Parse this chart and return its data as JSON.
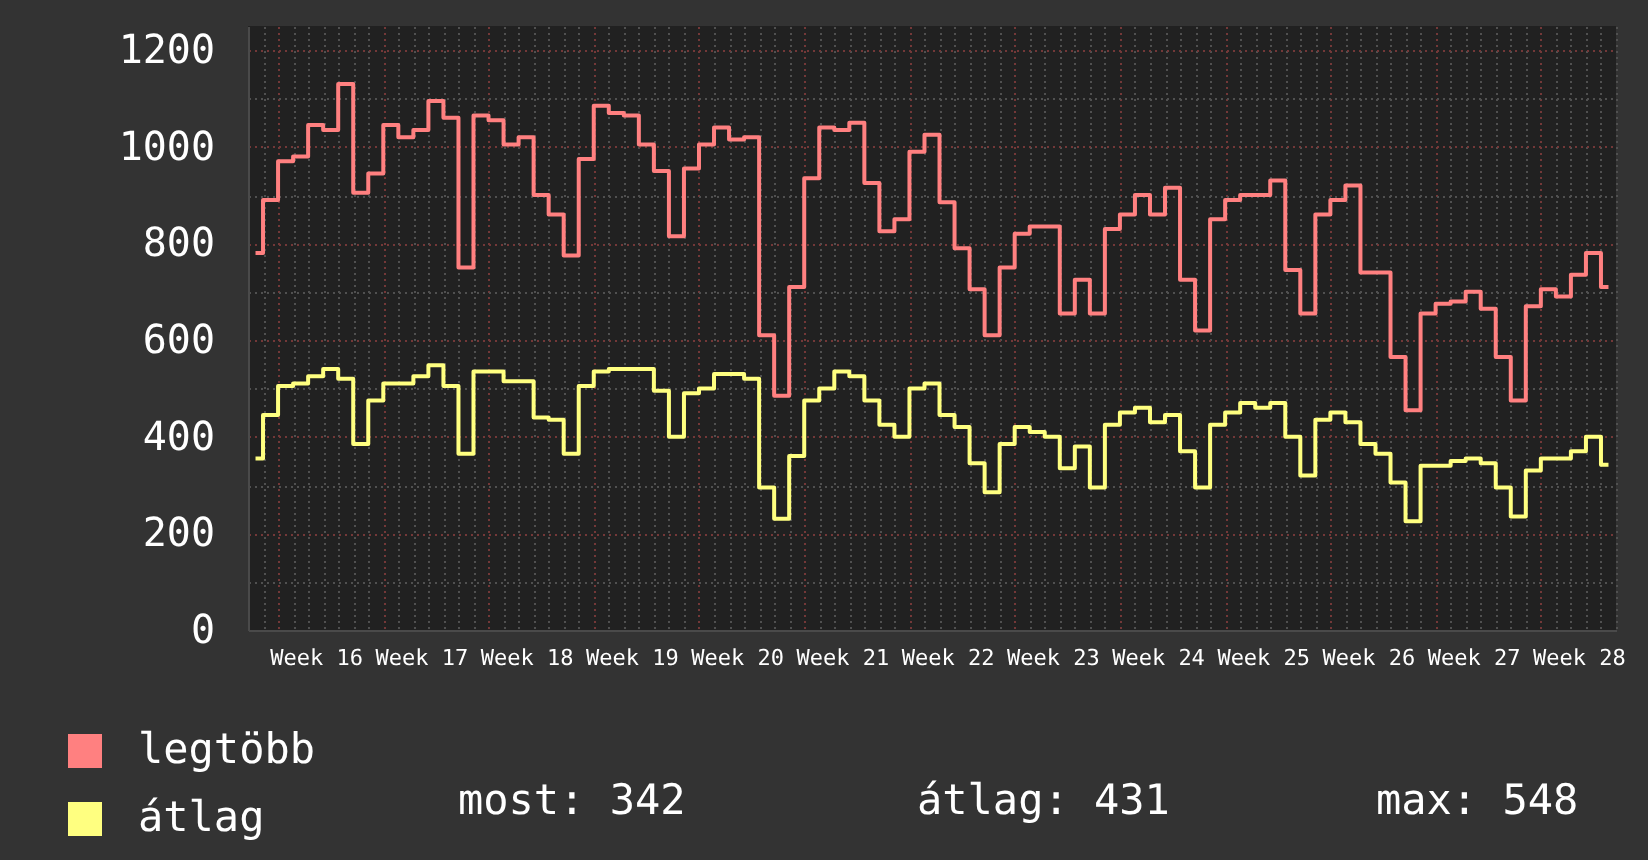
{
  "chart_data": {
    "type": "step",
    "categories": [
      null,
      null,
      null,
      null,
      "Week 16",
      null,
      null,
      null,
      null,
      null,
      null,
      "Week 17",
      null,
      null,
      null,
      null,
      null,
      null,
      "Week 18",
      null,
      null,
      null,
      null,
      null,
      null,
      "Week 19",
      null,
      null,
      null,
      null,
      null,
      null,
      "Week 20",
      null,
      null,
      null,
      null,
      null,
      null,
      "Week 21",
      null,
      null,
      null,
      null,
      null,
      null,
      "Week 22",
      null,
      null,
      null,
      null,
      null,
      null,
      "Week 23",
      null,
      null,
      null,
      null,
      null,
      null,
      "Week 24",
      null,
      null,
      null,
      null,
      null,
      null,
      "Week 25",
      null,
      null,
      null,
      null,
      null,
      null,
      "Week 26",
      null,
      null,
      null,
      null,
      null,
      null,
      "Week 27",
      null,
      null,
      null,
      null,
      null,
      null,
      "Week 28",
      null,
      null
    ],
    "series": [
      {
        "name": "legtöbb",
        "color": "#ff8080",
        "values": [
          780,
          890,
          970,
          980,
          1045,
          1035,
          1130,
          905,
          945,
          1045,
          1020,
          1035,
          1095,
          1060,
          750,
          1065,
          1055,
          1005,
          1020,
          900,
          860,
          775,
          975,
          1085,
          1070,
          1065,
          1005,
          950,
          815,
          955,
          1005,
          1040,
          1015,
          1020,
          610,
          485,
          710,
          935,
          1040,
          1035,
          1050,
          925,
          825,
          850,
          990,
          1025,
          885,
          790,
          705,
          610,
          750,
          820,
          835,
          835,
          655,
          725,
          655,
          830,
          860,
          900,
          860,
          915,
          725,
          620,
          850,
          890,
          900,
          900,
          930,
          745,
          655,
          860,
          890,
          920,
          740,
          740,
          565,
          455,
          655,
          675,
          680,
          700,
          665,
          565,
          475,
          670,
          705,
          690,
          735,
          780,
          710
        ]
      },
      {
        "name": "átlag",
        "color": "#ffff80",
        "values": [
          355,
          445,
          505,
          510,
          525,
          540,
          520,
          385,
          475,
          510,
          510,
          525,
          548,
          505,
          365,
          535,
          535,
          515,
          515,
          440,
          435,
          365,
          505,
          535,
          540,
          540,
          540,
          495,
          400,
          490,
          500,
          530,
          530,
          520,
          295,
          230,
          360,
          475,
          500,
          535,
          525,
          475,
          425,
          400,
          500,
          510,
          445,
          420,
          345,
          285,
          385,
          420,
          410,
          400,
          335,
          380,
          295,
          425,
          450,
          460,
          430,
          445,
          370,
          295,
          425,
          450,
          470,
          460,
          470,
          400,
          320,
          435,
          450,
          430,
          385,
          365,
          305,
          225,
          340,
          340,
          350,
          355,
          345,
          295,
          235,
          330,
          355,
          355,
          370,
          400,
          342
        ]
      }
    ],
    "ylim": [
      0,
      1250
    ],
    "yticks": [
      0,
      {
        "value": 100,
        "label": null
      },
      200,
      {
        "value": 300,
        "label": null
      },
      400,
      {
        "value": 500,
        "label": null
      },
      600,
      {
        "value": 700,
        "label": null
      },
      800,
      {
        "value": 900,
        "label": null
      },
      1000,
      {
        "value": 1100,
        "label": null
      },
      1200
    ],
    "grid": true,
    "legend": "bottom left",
    "annotations": [
      "most: 342",
      "átlag: 431",
      "max: 548"
    ]
  }
}
